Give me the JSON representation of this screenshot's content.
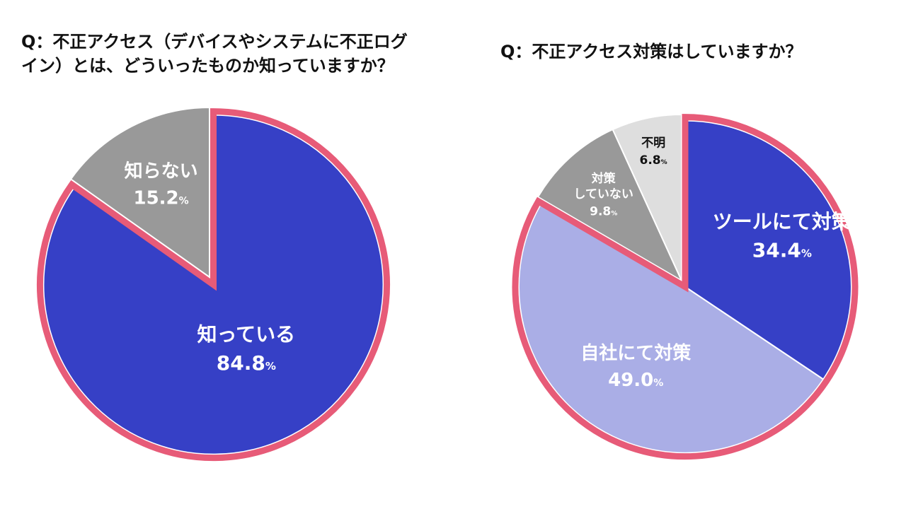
{
  "colors": {
    "accent_outline": "#e75b78",
    "dark_blue": "#3640c6",
    "light_blue": "#aaaee6",
    "gray": "#999999",
    "light_gray": "#dedede",
    "text_light": "#ffffff",
    "text_dark": "#111111"
  },
  "chart_data": [
    {
      "type": "pie",
      "title": "Q：不正アクセス（デバイスやシステムに不正ログ\nイン）とは、どういったものか知っていますか？",
      "unit": "%",
      "slices": [
        {
          "label": "知っている",
          "value": 84.8,
          "color": "#3640c6",
          "label_color": "#ffffff",
          "highlight": true
        },
        {
          "label": "知らない",
          "value": 15.2,
          "color": "#999999",
          "label_color": "#ffffff",
          "highlight": false
        }
      ]
    },
    {
      "type": "pie",
      "title": "Q：不正アクセス対策はしていますか？",
      "unit": "%",
      "slices": [
        {
          "label": "ツールにて対策",
          "value": 34.4,
          "color": "#3640c6",
          "label_color": "#ffffff",
          "highlight": true
        },
        {
          "label": "自社にて対策",
          "value": 49.0,
          "color": "#aaaee6",
          "label_color": "#ffffff",
          "highlight": true
        },
        {
          "label": "対策\nしていない",
          "value": 9.8,
          "color": "#999999",
          "label_color": "#ffffff",
          "highlight": false
        },
        {
          "label": "不明",
          "value": 6.8,
          "color": "#dedede",
          "label_color": "#111111",
          "highlight": false
        }
      ]
    }
  ]
}
